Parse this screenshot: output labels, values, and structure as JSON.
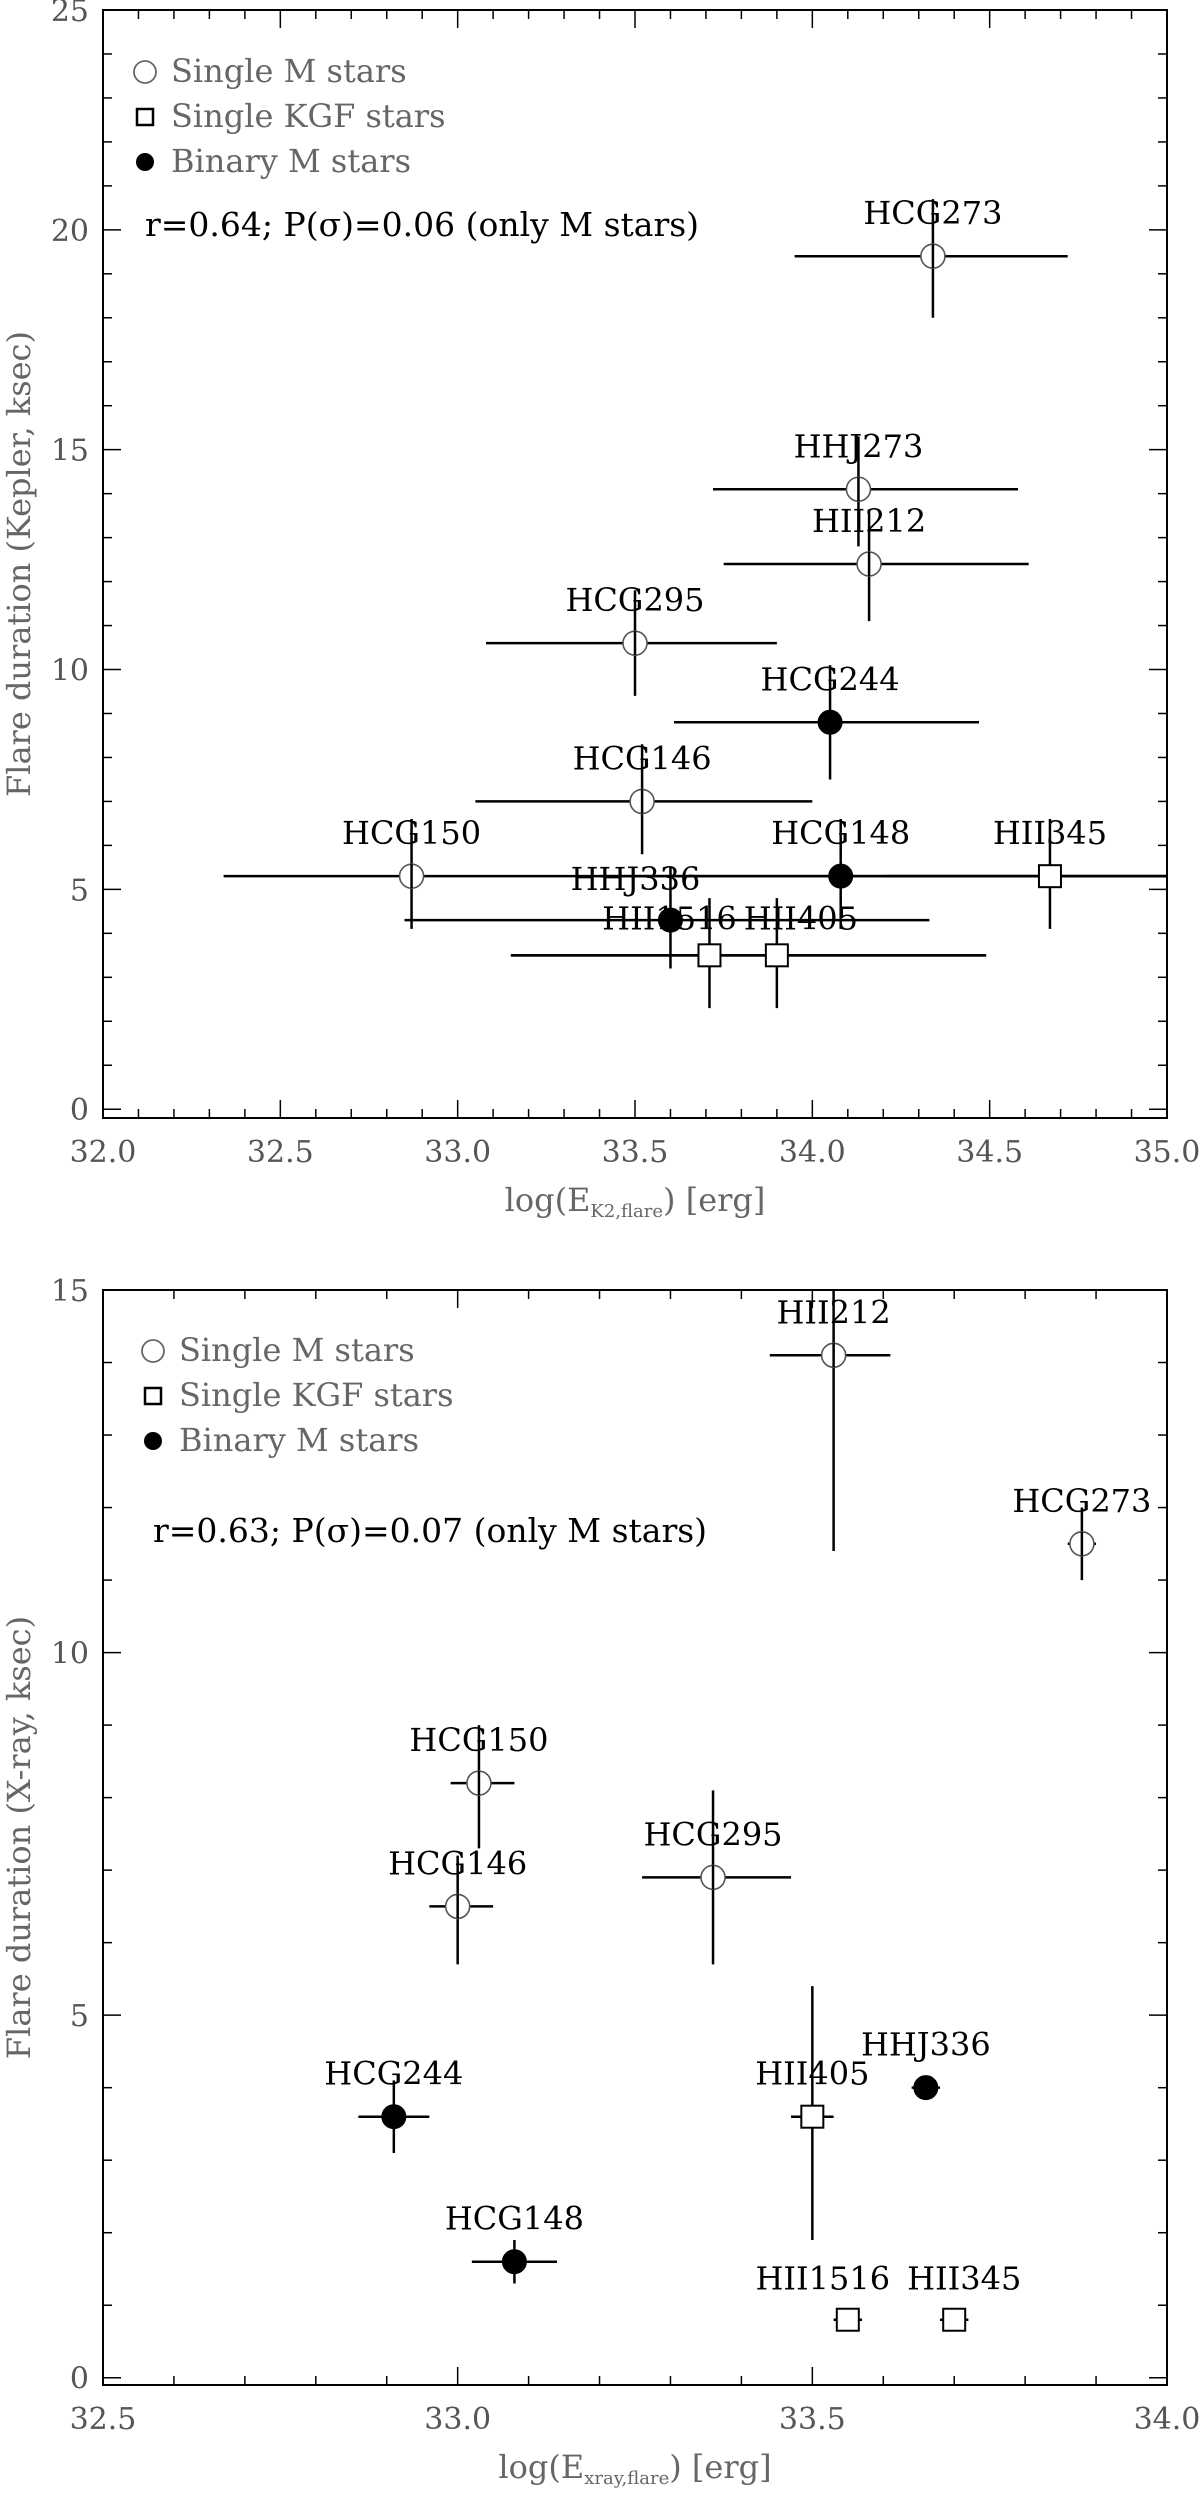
{
  "chart_data": [
    {
      "type": "scatter",
      "title": "",
      "xlabel": "log(E_K2,flare) [erg]",
      "xlabel_main": "log(E",
      "xlabel_sub": "K2,flare",
      "xlabel_tail": ") [erg]",
      "ylabel": "Flare duration (Kepler, ksec)",
      "xlim": [
        32.0,
        35.0
      ],
      "ylim": [
        -0.2,
        25
      ],
      "xticks": [
        32.0,
        32.5,
        33.0,
        33.5,
        34.0,
        34.5,
        35.0
      ],
      "xtick_labels": [
        "32.0",
        "32.5",
        "33.0",
        "33.5",
        "34.0",
        "34.5",
        "35.0"
      ],
      "yticks": [
        0,
        5,
        10,
        15,
        20,
        25
      ],
      "ytick_labels": [
        "0",
        "5",
        "10",
        "15",
        "20",
        "25"
      ],
      "legend": [
        {
          "marker": "open-circle",
          "label": "Single M stars"
        },
        {
          "marker": "open-square",
          "label": "Single KGF stars"
        },
        {
          "marker": "filled-circle",
          "label": "Binary M stars"
        }
      ],
      "annotation": "r=0.64; P(σ)=0.06 (only M stars)",
      "points": [
        {
          "name": "HCG273",
          "marker": "open-circle",
          "x": 34.34,
          "y": 19.4,
          "xlo": 33.95,
          "xhi": 34.72,
          "ylo": 18.0,
          "yhi": 20.7
        },
        {
          "name": "HHJ273",
          "marker": "open-circle",
          "x": 34.13,
          "y": 14.1,
          "xlo": 33.72,
          "xhi": 34.58,
          "ylo": 12.8,
          "yhi": 15.3
        },
        {
          "name": "HII212",
          "marker": "open-circle",
          "x": 34.16,
          "y": 12.4,
          "xlo": 33.75,
          "xhi": 34.61,
          "ylo": 11.1,
          "yhi": 13.6
        },
        {
          "name": "HCG295",
          "marker": "open-circle",
          "x": 33.5,
          "y": 10.6,
          "xlo": 33.08,
          "xhi": 33.9,
          "ylo": 9.4,
          "yhi": 11.8
        },
        {
          "name": "HCG244",
          "marker": "filled-circle",
          "x": 34.05,
          "y": 8.8,
          "xlo": 33.61,
          "xhi": 34.47,
          "ylo": 7.5,
          "yhi": 10.1
        },
        {
          "name": "HCG146",
          "marker": "open-circle",
          "x": 33.52,
          "y": 7.0,
          "xlo": 33.05,
          "xhi": 34.0,
          "ylo": 5.8,
          "yhi": 8.3
        },
        {
          "name": "HCG150",
          "marker": "open-circle",
          "x": 32.87,
          "y": 5.3,
          "xlo": 32.34,
          "xhi": 35.3,
          "ylo": 4.1,
          "yhi": 6.6
        },
        {
          "name": "HCG148",
          "marker": "filled-circle",
          "x": 34.08,
          "y": 5.3,
          "xlo": 33.4,
          "xhi": 35.0,
          "ylo": 4.1,
          "yhi": 6.6
        },
        {
          "name": "HII345",
          "marker": "open-square",
          "x": 34.67,
          "y": 5.3,
          "xlo": 34.2,
          "xhi": 35.0,
          "ylo": 4.1,
          "yhi": 6.6
        },
        {
          "name": "HHJ336",
          "marker": "filled-circle",
          "x": 33.6,
          "y": 4.3,
          "xlo": 32.85,
          "xhi": 34.33,
          "ylo": 3.2,
          "yhi": 5.5
        },
        {
          "name": "HII1516",
          "marker": "open-square",
          "x": 33.71,
          "y": 3.5,
          "xlo": 33.15,
          "xhi": 34.49,
          "ylo": 2.3,
          "yhi": 4.8
        },
        {
          "name": "HII405",
          "marker": "open-square",
          "x": 33.9,
          "y": 3.5,
          "xlo": 33.15,
          "xhi": 34.49,
          "ylo": 2.3,
          "yhi": 4.8
        }
      ]
    },
    {
      "type": "scatter",
      "title": "",
      "xlabel": "log(E_xray,flare) [erg]",
      "xlabel_main": "log(E",
      "xlabel_sub": "xray,flare",
      "xlabel_tail": ") [erg]",
      "ylabel": "Flare duration (X-ray, ksec)",
      "xlim": [
        32.5,
        34.0
      ],
      "ylim": [
        -0.1,
        15
      ],
      "xticks": [
        32.5,
        33.0,
        33.5,
        34.0
      ],
      "xtick_labels": [
        "32.5",
        "33.0",
        "33.5",
        "34.0"
      ],
      "yticks": [
        0,
        5,
        10,
        15
      ],
      "ytick_labels": [
        "0",
        "5",
        "10",
        "15"
      ],
      "legend": [
        {
          "marker": "open-circle",
          "label": "Single M stars"
        },
        {
          "marker": "open-square",
          "label": "Single KGF stars"
        },
        {
          "marker": "filled-circle",
          "label": "Binary M stars"
        }
      ],
      "annotation": "r=0.63; P(σ)=0.07 (only M stars)",
      "points": [
        {
          "name": "HII212",
          "marker": "open-circle",
          "x": 33.53,
          "y": 14.1,
          "xlo": 33.44,
          "xhi": 33.61,
          "ylo": 11.4,
          "yhi": 15.0
        },
        {
          "name": "HCG273",
          "marker": "open-circle",
          "x": 33.88,
          "y": 11.5,
          "xlo": 33.86,
          "xhi": 33.9,
          "ylo": 11.0,
          "yhi": 12.0
        },
        {
          "name": "HCG150",
          "marker": "open-circle",
          "x": 33.03,
          "y": 8.2,
          "xlo": 32.99,
          "xhi": 33.08,
          "ylo": 7.3,
          "yhi": 9.0
        },
        {
          "name": "HCG295",
          "marker": "open-circle",
          "x": 33.36,
          "y": 6.9,
          "xlo": 33.26,
          "xhi": 33.47,
          "ylo": 5.7,
          "yhi": 8.1
        },
        {
          "name": "HCG146",
          "marker": "open-circle",
          "x": 33.0,
          "y": 6.5,
          "xlo": 32.96,
          "xhi": 33.05,
          "ylo": 5.7,
          "yhi": 7.2
        },
        {
          "name": "HHJ336",
          "marker": "filled-circle",
          "x": 33.66,
          "y": 4.0,
          "xlo": 33.64,
          "xhi": 33.68,
          "ylo": 3.85,
          "yhi": 4.15
        },
        {
          "name": "HII405",
          "marker": "open-square",
          "x": 33.5,
          "y": 3.6,
          "xlo": 33.47,
          "xhi": 33.53,
          "ylo": 1.9,
          "yhi": 5.4
        },
        {
          "name": "HCG244",
          "marker": "filled-circle",
          "x": 32.91,
          "y": 3.6,
          "xlo": 32.86,
          "xhi": 32.96,
          "ylo": 3.1,
          "yhi": 4.1
        },
        {
          "name": "HCG148",
          "marker": "filled-circle",
          "x": 33.08,
          "y": 1.6,
          "xlo": 33.02,
          "xhi": 33.14,
          "ylo": 1.3,
          "yhi": 1.9
        },
        {
          "name": "HII1516",
          "marker": "open-square",
          "x": 33.55,
          "y": 0.8,
          "xlo": 33.53,
          "xhi": 33.57,
          "ylo": 0.65,
          "yhi": 0.95
        },
        {
          "name": "HII345",
          "marker": "open-square",
          "x": 33.7,
          "y": 0.8,
          "xlo": 33.68,
          "xhi": 33.72,
          "ylo": 0.65,
          "yhi": 0.95
        }
      ]
    }
  ]
}
